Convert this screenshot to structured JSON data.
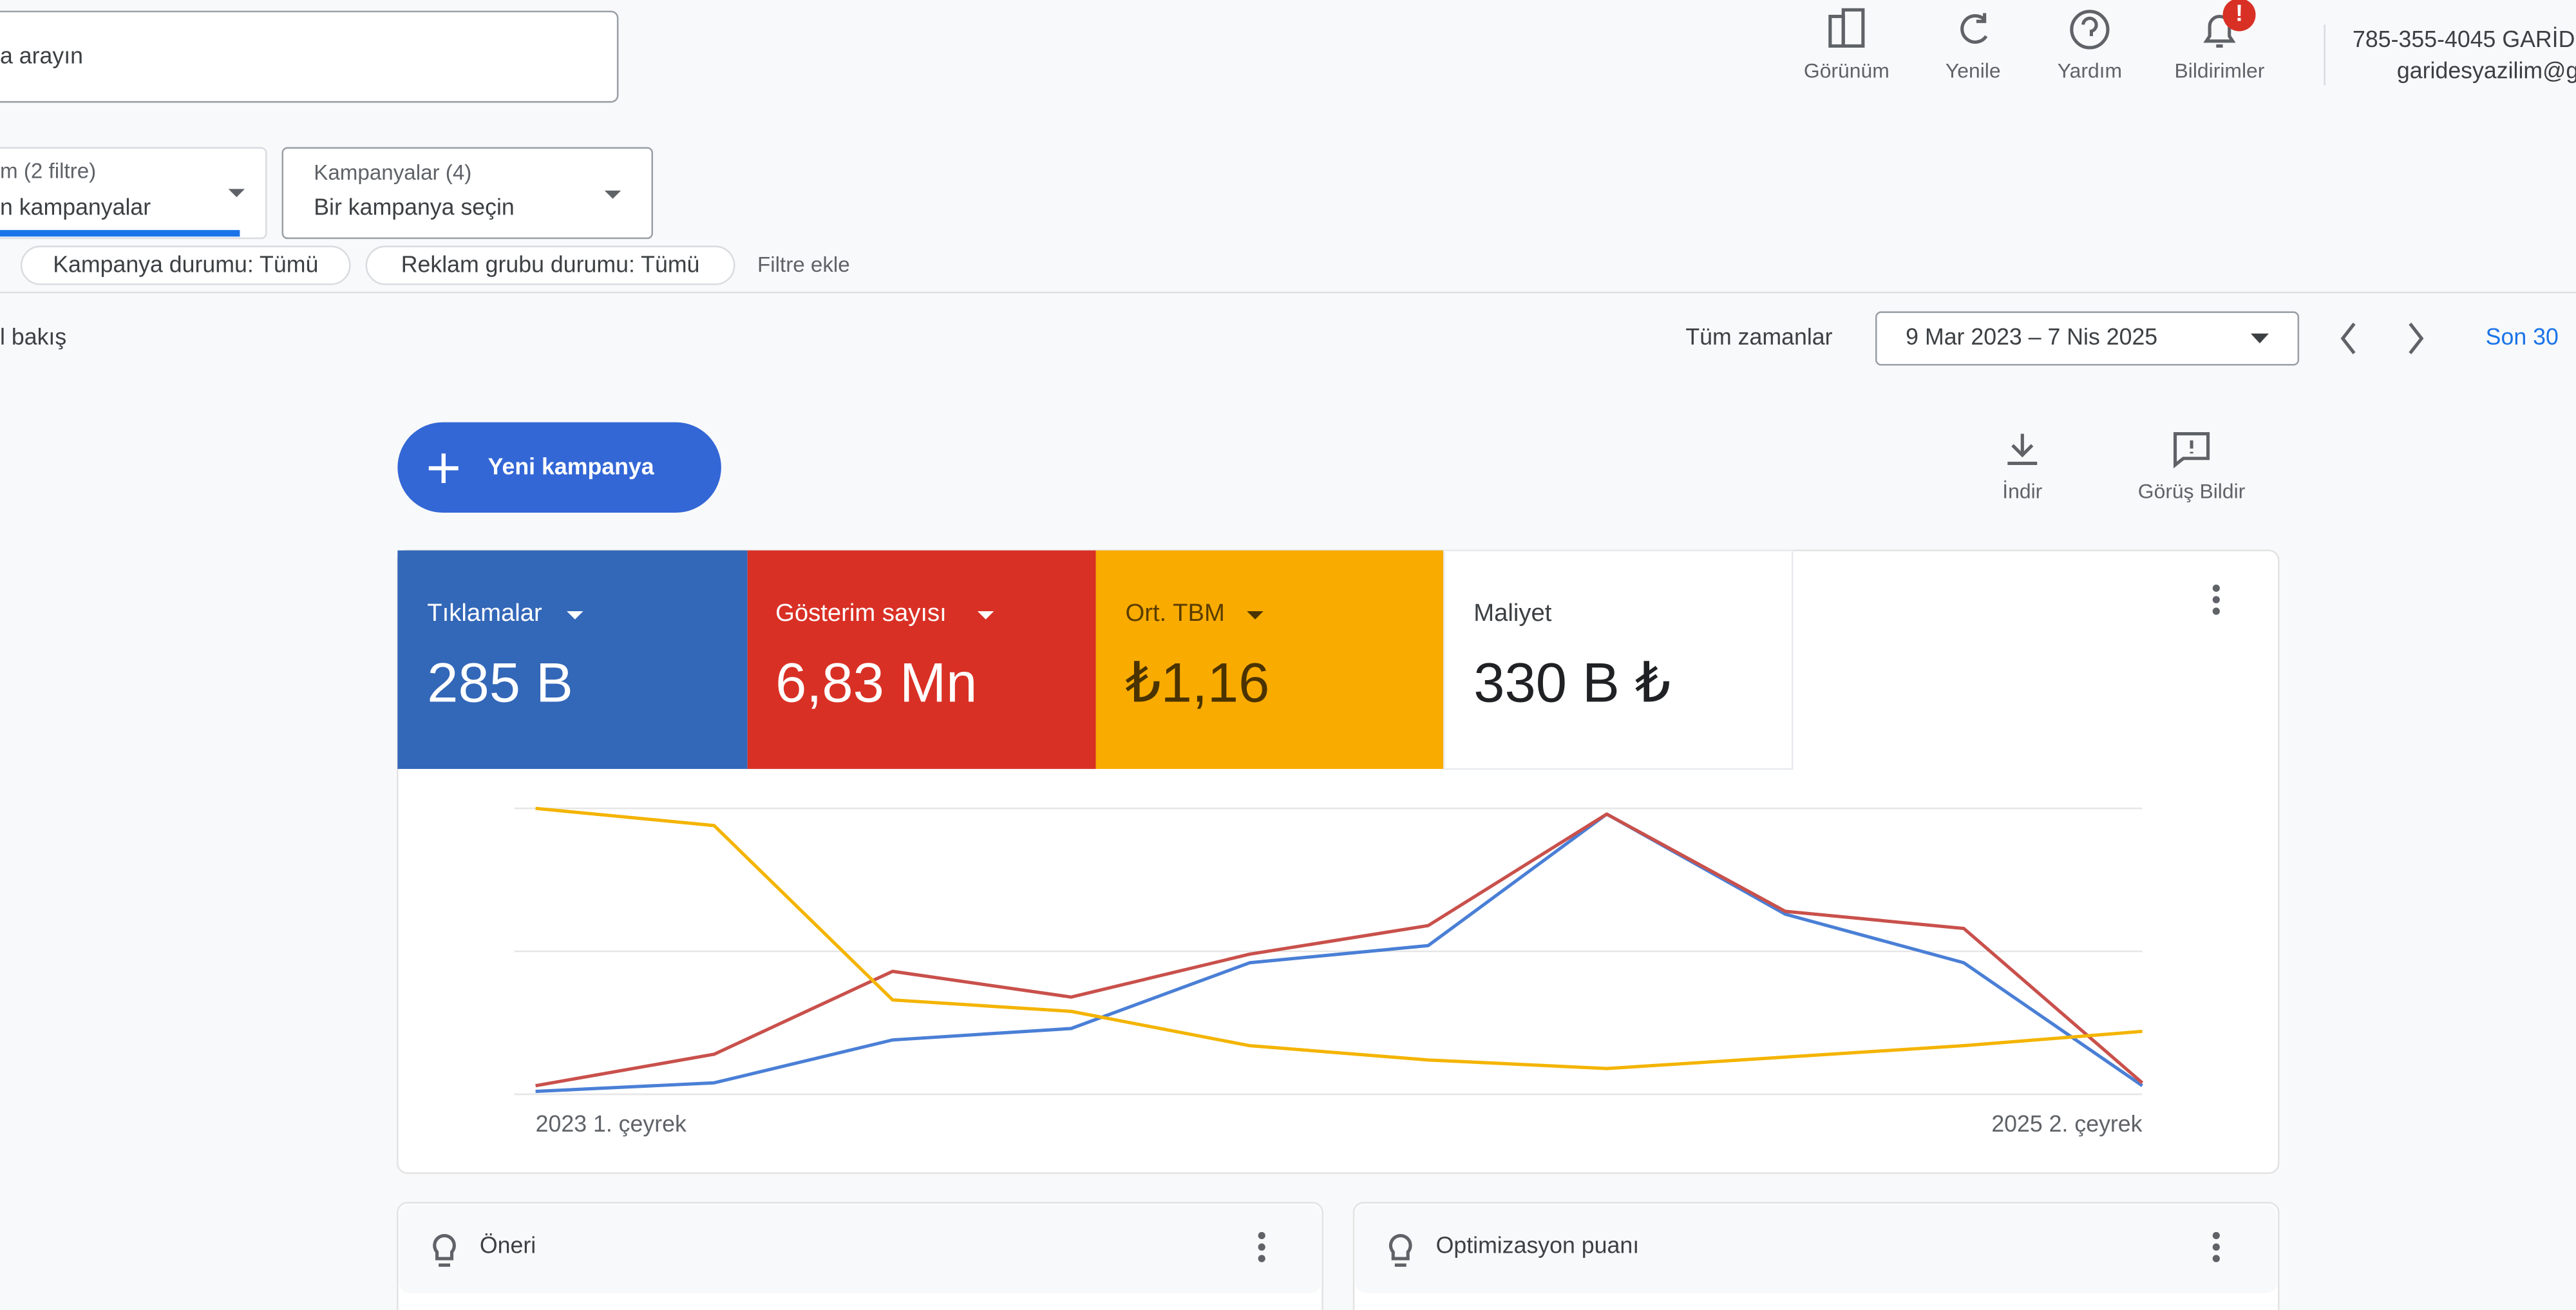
{
  "header": {
    "search_placeholder": "a arayın",
    "nav": [
      "Görünüm",
      "Yenile",
      "Yardım",
      "Bildirimler"
    ],
    "notification_badge": "!",
    "account_id": "785-355-4045 GARİD",
    "account_email": "garidesyazilim@g"
  },
  "filters": {
    "dropdowns": [
      {
        "label": "m (2 filtre)",
        "value": "n kampanyalar"
      },
      {
        "label": "Kampanyalar (4)",
        "value": "Bir kampanya seçin"
      }
    ],
    "chips": [
      "Kampanya durumu: Tümü",
      "Reklam grubu durumu: Tümü"
    ],
    "add_filter": "Filtre ekle"
  },
  "overview": {
    "title": "l bakış",
    "range_label": "Tüm zamanlar",
    "date_range": "9 Mar 2023 – 7 Nis 2025",
    "quick_range": "Son 30",
    "new_campaign": "Yeni kampanya",
    "actions": [
      "İndir",
      "Görüş Bildir"
    ]
  },
  "metrics": [
    {
      "label": "Tıklamalar",
      "value": "285 B"
    },
    {
      "label": "Gösterim sayısı",
      "value": "6,83 Mn"
    },
    {
      "label": "Ort. TBM",
      "value": "₺1,16"
    },
    {
      "label": "Maliyet",
      "value": "330 B ₺"
    }
  ],
  "chart_data": {
    "type": "line",
    "categories": [
      "2023 1. çeyrek",
      null,
      null,
      null,
      null,
      null,
      null,
      null,
      null,
      "2025 2. çeyrek"
    ],
    "ylim": [
      0,
      100
    ],
    "series": [
      {
        "color": "#4a7fd6",
        "values": [
          1,
          4,
          19,
          23,
          46,
          52,
          98,
          63,
          46,
          3
        ]
      },
      {
        "color": "#c9504b",
        "values": [
          3,
          14,
          43,
          34,
          49,
          59,
          98,
          64,
          58,
          4
        ]
      },
      {
        "color": "#f4b400",
        "values": [
          100,
          94,
          33,
          29,
          17,
          12,
          9,
          13,
          17,
          22
        ]
      }
    ]
  },
  "cards": [
    "Öneri",
    "Optimizasyon puanı"
  ]
}
